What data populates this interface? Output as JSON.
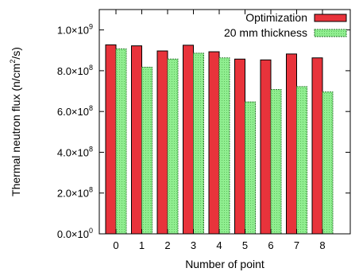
{
  "chart_data": {
    "type": "bar",
    "xlabel": "Number of point",
    "ylabel": {
      "text_before": "Thermal neutron flux (n/cm",
      "superscript": "2",
      "text_after": "/s)"
    },
    "categories": [
      "0",
      "1",
      "2",
      "3",
      "4",
      "5",
      "6",
      "7",
      "8"
    ],
    "ylim": [
      0,
      1100000000.0
    ],
    "y_ticks": [
      {
        "value": 0,
        "mantissa": "0.0",
        "exponent": "0"
      },
      {
        "value": 200000000.0,
        "mantissa": "2.0",
        "exponent": "8"
      },
      {
        "value": 400000000.0,
        "mantissa": "4.0",
        "exponent": "8"
      },
      {
        "value": 600000000.0,
        "mantissa": "6.0",
        "exponent": "8"
      },
      {
        "value": 800000000.0,
        "mantissa": "8.0",
        "exponent": "8"
      },
      {
        "value": 1000000000.0,
        "mantissa": "1.0",
        "exponent": "9"
      }
    ],
    "tick_multiplier": "×10",
    "grid": false,
    "legend_position": "top-right",
    "series": [
      {
        "name": "Optimization",
        "color": "#e8333b",
        "values": [
          927000000.0,
          922000000.0,
          897000000.0,
          925000000.0,
          893000000.0,
          857000000.0,
          853000000.0,
          882000000.0,
          863000000.0
        ]
      },
      {
        "name": "20 mm thickness",
        "color": "#90ee90",
        "values": [
          907000000.0,
          817000000.0,
          857000000.0,
          886000000.0,
          863000000.0,
          647000000.0,
          708000000.0,
          722000000.0,
          696000000.0
        ]
      }
    ]
  }
}
